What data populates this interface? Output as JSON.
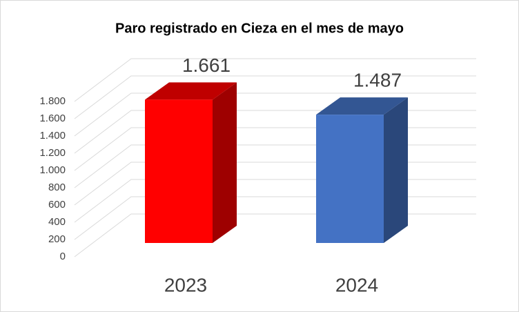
{
  "chart_data": {
    "type": "bar3d",
    "title": "Paro registrado en Cieza en el mes de mayo",
    "categories": [
      "2023",
      "2024"
    ],
    "values": [
      1661,
      1487
    ],
    "value_labels": [
      "1.661",
      "1.487"
    ],
    "colors": [
      "#ff0000",
      "#4472c4"
    ],
    "ylim": [
      0,
      1800
    ],
    "yticks": [
      0,
      200,
      400,
      600,
      800,
      {
        "value": 1000,
        "label": "1.000"
      },
      {
        "value": 1200,
        "label": "1.200"
      },
      {
        "value": 1400,
        "label": "1.400"
      },
      {
        "value": 1600,
        "label": "1.600"
      },
      {
        "value": 1800,
        "label": "1.800"
      }
    ],
    "grid": true
  }
}
